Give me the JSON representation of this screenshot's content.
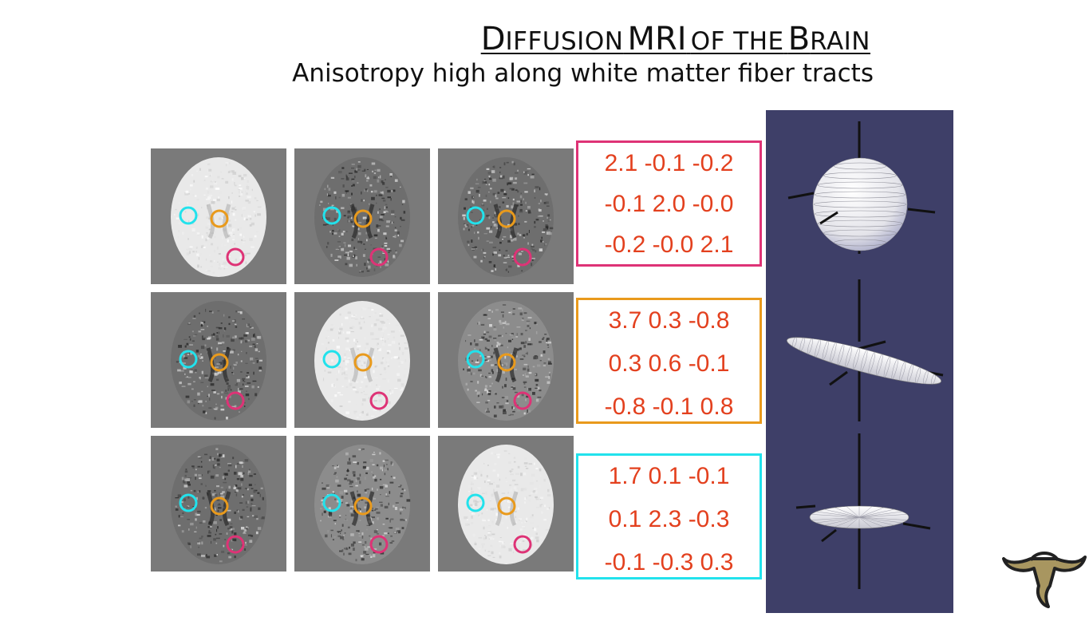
{
  "title": {
    "d": "D",
    "iffusion": "IFFUSION",
    "mri": "MRI",
    "of_the": "OF THE",
    "b": "B",
    "rain": "RAIN"
  },
  "subtitle": "Anisotropy high along white matter fiber tracts",
  "colors": {
    "cyan": "#22e2ec",
    "orange": "#e99a1c",
    "magenta": "#de3376",
    "matrix_text": "#e3401e",
    "panel": "#3e3f68"
  },
  "matrices": [
    {
      "name": "sphere",
      "border": "magenta",
      "rows": [
        "2.1 -0.1 -0.2",
        "-0.1 2.0 -0.0",
        "-0.2 -0.0 2.1"
      ]
    },
    {
      "name": "cigar",
      "border": "orange",
      "rows": [
        "3.7 0.3 -0.8",
        "0.3 0.6 -0.1",
        "-0.8 -0.1 0.8"
      ]
    },
    {
      "name": "disc",
      "border": "cyan",
      "rows": [
        "1.7 0.1 -0.1",
        "0.1 2.3 -0.3",
        "-0.1 -0.3 0.3"
      ]
    }
  ],
  "tiles": [
    {
      "type": "bright"
    },
    {
      "type": "dark"
    },
    {
      "type": "dark"
    },
    {
      "type": "dark"
    },
    {
      "type": "bright"
    },
    {
      "type": "medium"
    },
    {
      "type": "dark"
    },
    {
      "type": "medium"
    },
    {
      "type": "bright"
    }
  ],
  "ellipsoids": [
    "sphere",
    "cigar",
    "disc"
  ],
  "logo": "bull-horns-logo"
}
